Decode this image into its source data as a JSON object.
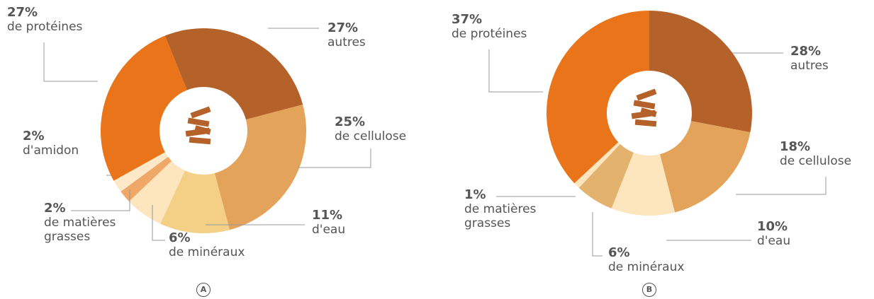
{
  "chart_data": [
    {
      "type": "pie",
      "label": "A",
      "categories": [
        "autres",
        "de cellulose",
        "d'eau",
        "de minéraux",
        "de matières grasses",
        "d'amidon",
        "de protéines"
      ],
      "values": [
        27,
        25,
        11,
        6,
        2,
        2,
        27
      ],
      "value_labels": [
        "27%",
        "25%",
        "11%",
        "6%",
        "2%",
        "2%",
        "27%"
      ],
      "colors": [
        "#b5622a",
        "#e4a35a",
        "#f4cf86",
        "#fde5bd",
        "#f0a868",
        "#fde8c8",
        "#ea7419"
      ]
    },
    {
      "type": "pie",
      "label": "B",
      "categories": [
        "autres",
        "de cellulose",
        "d'eau",
        "de minéraux",
        "de matières grasses",
        "de protéines"
      ],
      "values": [
        28,
        18,
        10,
        6,
        1,
        37
      ],
      "value_labels": [
        "28%",
        "18%",
        "10%",
        "6%",
        "1%",
        "37%"
      ],
      "colors": [
        "#b5622a",
        "#e4a35a",
        "#fde5bd",
        "#e3b26e",
        "#fde5bd",
        "#ea7419"
      ]
    }
  ]
}
